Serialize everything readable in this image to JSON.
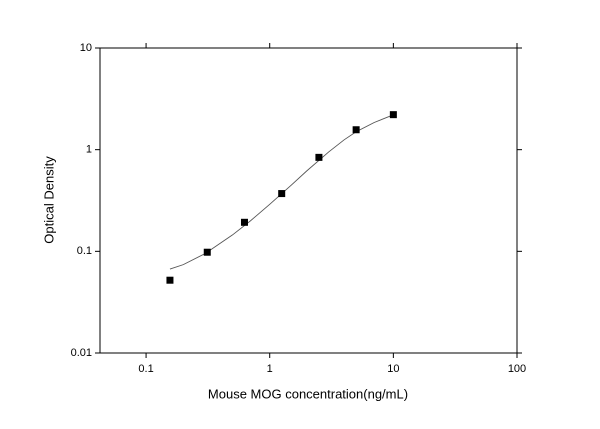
{
  "chart_data": {
    "type": "scatter",
    "x_label": "Mouse MOG concentration(ng/mL)",
    "y_label": "Optical Density",
    "x": [
      0.156,
      0.3125,
      0.625,
      1.25,
      2.5,
      5,
      10
    ],
    "values": [
      0.052,
      0.098,
      0.193,
      0.37,
      0.84,
      1.57,
      2.21
    ],
    "color": "#000000",
    "fit": {
      "color": "#555555",
      "x": [
        0.156,
        0.2,
        0.3,
        0.5,
        0.7,
        1,
        1.5,
        2,
        3,
        4,
        5,
        7,
        10
      ],
      "values": [
        0.067,
        0.074,
        0.095,
        0.145,
        0.2,
        0.29,
        0.45,
        0.62,
        0.95,
        1.25,
        1.5,
        1.85,
        2.2
      ]
    },
    "xlog": true,
    "ylog": true,
    "xlim": [
      0.0424,
      100
    ],
    "ylim": [
      0.01,
      10
    ],
    "xticks": [
      0.1,
      1,
      10,
      100
    ],
    "yticks": [
      0.01,
      0.1,
      1,
      10
    ]
  }
}
